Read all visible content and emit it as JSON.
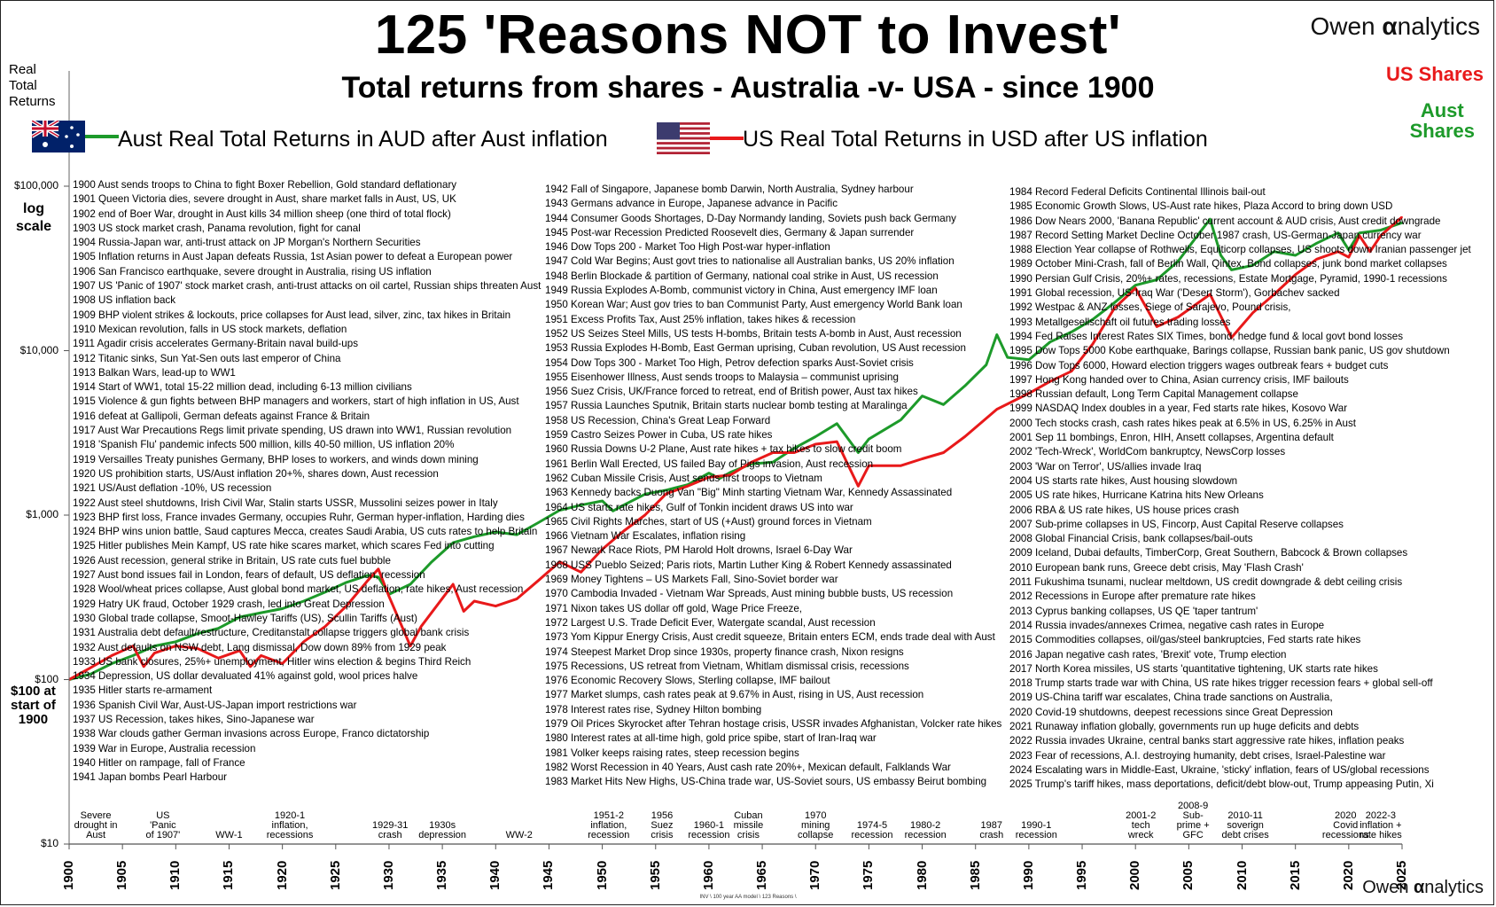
{
  "title": "125 'Reasons NOT to Invest'",
  "subtitle": "Total returns from shares - Australia -v- USA - since 1900",
  "brand": {
    "circle_letter": "O",
    "rest": "wen ",
    "alpha": "α",
    "tail": "nalytics"
  },
  "y_axis_title": "Real\nTotal\nReturns",
  "log_note": "log\nscale",
  "start_note": "$100 at\nstart of\n1900",
  "legend": {
    "au_label": "Aust Real Total Returns in AUD after Aust inflation",
    "us_label": "US Real Total Returns in USD after US inflation"
  },
  "end_labels": {
    "us": "US Shares",
    "au": "Aust\nShares"
  },
  "colors": {
    "au": "#1d9a2a",
    "us": "#e8191a",
    "flag_blue": "#012169",
    "flag_red": "#b22234"
  },
  "footnote": "INV \\ 100 year AA model \\ 123 Reasons \\",
  "chart_data": {
    "type": "line",
    "title": "125 'Reasons NOT to Invest'",
    "subtitle": "Total returns from shares - Australia -v- USA - since 1900",
    "ylabel": "Real Total Returns",
    "y_scale": "log",
    "ylim": [
      10,
      100000
    ],
    "xlim": [
      1900,
      2025
    ],
    "y_ticks": [
      "$10",
      "$100",
      "$1,000",
      "$10,000",
      "$100,000"
    ],
    "y_tick_values": [
      10,
      100,
      1000,
      10000,
      100000
    ],
    "x_ticks": [
      1900,
      1905,
      1910,
      1915,
      1920,
      1925,
      1930,
      1935,
      1940,
      1945,
      1950,
      1955,
      1960,
      1965,
      1970,
      1975,
      1980,
      1985,
      1990,
      1995,
      2000,
      2005,
      2010,
      2015,
      2020,
      2025
    ],
    "series": [
      {
        "name": "Aust Real Total Returns in AUD after Aust inflation",
        "color": "#1d9a2a",
        "x": [
          1900,
          1902,
          1904,
          1906,
          1908,
          1910,
          1912,
          1914,
          1916,
          1918,
          1920,
          1922,
          1924,
          1926,
          1928,
          1929,
          1930,
          1932,
          1934,
          1936,
          1938,
          1940,
          1942,
          1944,
          1946,
          1948,
          1950,
          1951,
          1952,
          1954,
          1956,
          1958,
          1960,
          1961,
          1962,
          1964,
          1966,
          1968,
          1970,
          1972,
          1974,
          1975,
          1978,
          1980,
          1982,
          1984,
          1986,
          1987,
          1988,
          1990,
          1992,
          1994,
          1996,
          1998,
          2000,
          2002,
          2004,
          2006,
          2007,
          2008,
          2009,
          2011,
          2013,
          2015,
          2017,
          2019,
          2020,
          2021,
          2023,
          2025
        ],
        "y": [
          100,
          108,
          125,
          140,
          160,
          170,
          190,
          205,
          240,
          255,
          270,
          300,
          340,
          390,
          430,
          420,
          330,
          380,
          520,
          680,
          740,
          790,
          760,
          900,
          1070,
          1150,
          1220,
          1060,
          1150,
          1340,
          1420,
          1530,
          1800,
          1670,
          1820,
          2050,
          2100,
          2550,
          3000,
          3600,
          2400,
          2900,
          3800,
          5300,
          4700,
          6100,
          8200,
          12500,
          9100,
          8800,
          11300,
          13000,
          15500,
          19500,
          25000,
          27000,
          35000,
          52000,
          63000,
          38000,
          31000,
          33000,
          40000,
          38000,
          45000,
          52000,
          41000,
          52000,
          54000,
          60000
        ]
      },
      {
        "name": "US Real Total Returns in USD after US inflation",
        "color": "#e8191a",
        "x": [
          1900,
          1902,
          1904,
          1906,
          1907,
          1908,
          1910,
          1912,
          1914,
          1916,
          1917,
          1918,
          1920,
          1922,
          1924,
          1926,
          1928,
          1929,
          1930,
          1932,
          1933,
          1936,
          1937,
          1938,
          1940,
          1942,
          1944,
          1946,
          1948,
          1950,
          1952,
          1954,
          1956,
          1958,
          1960,
          1962,
          1964,
          1966,
          1968,
          1970,
          1972,
          1974,
          1975,
          1978,
          1980,
          1982,
          1984,
          1987,
          1990,
          1992,
          1994,
          1996,
          1998,
          2000,
          2002,
          2004,
          2007,
          2009,
          2011,
          2013,
          2015,
          2017,
          2019,
          2020,
          2021,
          2022,
          2023,
          2025
        ],
        "y": [
          100,
          118,
          140,
          160,
          120,
          145,
          160,
          155,
          135,
          150,
          120,
          140,
          125,
          170,
          210,
          280,
          400,
          470,
          320,
          160,
          210,
          380,
          260,
          300,
          280,
          310,
          400,
          520,
          450,
          620,
          800,
          1000,
          1350,
          1500,
          1700,
          1750,
          2100,
          2400,
          2400,
          2700,
          2800,
          1500,
          2000,
          2000,
          2200,
          2400,
          3000,
          4400,
          5500,
          6500,
          7500,
          11000,
          18000,
          24000,
          14000,
          16000,
          22000,
          12000,
          17000,
          22000,
          29000,
          36000,
          40000,
          37000,
          50000,
          40000,
          50000,
          65000
        ]
      }
    ]
  },
  "events_col1": [
    "1900 Aust sends troops to China to fight Boxer Rebellion, Gold standard deflationary",
    "1901 Queen Victoria dies, severe drought in Aust, share market falls in Aust, US, UK",
    "1902 end of Boer War, drought in Aust kills 34 million sheep (one third of total flock)",
    "1903 US stock market crash, Panama revolution, fight for canal",
    "1904 Russia-Japan war, anti-trust attack on JP Morgan's Northern Securities",
    "1905 Inflation returns in Aust Japan defeats Russia, 1st Asian power to defeat a European power",
    "1906 San Francisco earthquake, severe drought in Australia, rising US inflation",
    "1907 US 'Panic of 1907' stock market crash, anti-trust attacks on oil cartel, Russian ships threaten Aust",
    "1908 US inflation back",
    "1909 BHP violent strikes & lockouts, price collapses for Aust lead, silver, zinc, tax hikes in Britain",
    "1910 Mexican revolution, falls in US stock markets, deflation",
    "1911 Agadir crisis accelerates Germany-Britain naval build-ups",
    "1912 Titanic sinks, Sun Yat-Sen outs last emperor of China",
    "1913 Balkan Wars, lead-up to WW1",
    "1914 Start of WW1, total 15-22 million dead, including 6-13 million civilians",
    "1915 Violence & gun fights between BHP managers and workers, start of high inflation in US, Aust",
    "1916 defeat at Gallipoli, German defeats against France & Britain",
    "1917 Aust War Precautions Regs limit private spending, US drawn into WW1, Russian revolution",
    "1918 'Spanish Flu' pandemic infects 500 million, kills 40-50 million, US inflation 20%",
    "1919 Versailles Treaty punishes Germany, BHP loses to workers, and winds down mining",
    "1920 US prohibition starts, US/Aust inflation 20+%, shares down, Aust recession",
    "1921 US/Aust deflation -10%, US recession",
    "1922 Aust steel shutdowns, Irish Civil War, Stalin starts USSR, Mussolini seizes power in Italy",
    "1923 BHP first loss, France invades Germany, occupies Ruhr, German hyper-inflation, Harding dies",
    "1924 BHP wins union battle, Saud captures Mecca, creates Saudi Arabia, US cuts rates to help Britain",
    "1925 Hitler publishes Mein Kampf, US rate hike scares market, which scares Fed into cutting",
    "1926 Aust recession, general strike in Britain, US rate cuts fuel bubble",
    "1927 Aust bond issues fail in London, fears of default, US deflation, recession",
    "1928 Wool/wheat prices collapse, Aust global bond market, US deflation, rate hikes, Aust recession",
    "1929 Hatry UK fraud, October 1929 crash, led into Great Depression",
    "1930 Global trade collapse, Smoot-Hawley Tariffs (US), Scullin Tariffs (Aust)",
    "1931 Australia debt default/restructure, Creditanstalt collapse triggers global bank crisis",
    "1932 Aust defaults on NSW debt, Lang dismissal, Dow down 89% from 1929 peak",
    "1933 US bank closures, 25%+ unemployment, Hitler wins election & begins Third Reich",
    "1934 Depression, US dollar devaluated 41% against gold, wool prices halve",
    "1935 Hitler starts re-armament",
    "1936 Spanish Civil War, Aust-US-Japan import restrictions war",
    "1937 US Recession, takes hikes, Sino-Japanese war",
    "1938 War clouds gather German invasions across Europe, Franco dictatorship",
    "1939 War in Europe, Australia recession",
    "1940 Hitler on rampage, fall of France",
    "1941 Japan bombs Pearl Harbour"
  ],
  "events_col2": [
    "1942 Fall of Singapore, Japanese bomb Darwin, North Australia, Sydney harbour",
    "1943 Germans advance in Europe, Japanese advance in Pacific",
    "1944 Consumer Goods Shortages, D-Day Normandy landing, Soviets push back Germany",
    "1945 Post-war Recession Predicted Roosevelt dies, Germany & Japan surrender",
    "1946 Dow Tops 200 - Market Too High Post-war hyper-inflation",
    "1947 Cold War Begins; Aust govt tries to nationalise all Australian banks, US 20% inflation",
    "1948 Berlin Blockade & partition of Germany, national coal strike in Aust, US recession",
    "1949 Russia Explodes A-Bomb, communist victory in China, Aust emergency IMF loan",
    "1950 Korean War; Aust gov tries to ban Communist Party, Aust emergency World Bank loan",
    "1951 Excess Profits Tax, Aust 25% inflation, takes hikes & recession",
    "1952 US Seizes Steel Mills, US tests H-bombs, Britain tests A-bomb in Aust, Aust recession",
    "1953 Russia Explodes H-Bomb, East German uprising, Cuban revolution, US Aust recession",
    "1954 Dow Tops 300 - Market Too High, Petrov defection sparks Aust-Soviet crisis",
    "1955 Eisenhower Illness, Aust sends troops to Malaysia – communist uprising",
    "1956 Suez Crisis, UK/France forced to retreat, end of British power, Aust tax hikes",
    "1957 Russia Launches Sputnik, Britain starts nuclear bomb testing at Maralinga",
    "1958 US Recession, China's Great Leap Forward",
    "1959 Castro Seizes Power in Cuba, US rate hikes",
    "1960 Russia Downs U-2 Plane, Aust rate hikes + tax hikes to slow credit boom",
    "1961 Berlin Wall Erected, US failed Bay of Pigs invasion, Aust recession",
    "1962 Cuban Missile Crisis, Aust sends first troops to Vietnam",
    "1963 Kennedy backs Duong Van \"Big\" Minh starting Vietnam War, Kennedy Assassinated",
    "1964 US starts rate hikes, Gulf of Tonkin incident draws US into war",
    "1965 Civil Rights Marches, start of US (+Aust) ground forces in Vietnam",
    "1966 Vietnam War Escalates, inflation rising",
    "1967 Newark Race Riots, PM Harold Holt drowns, Israel 6-Day War",
    "1968 USS Pueblo Seized; Paris riots, Martin Luther King & Robert Kennedy assassinated",
    "1969 Money Tightens – US Markets Fall, Sino-Soviet border war",
    "1970 Cambodia Invaded - Vietnam War Spreads, Aust mining bubble busts, US recession",
    "1971 Nixon takes US dollar off gold, Wage Price Freeze,",
    "1972 Largest U.S. Trade Deficit Ever, Watergate scandal, Aust recession",
    "1973 Yom Kippur Energy Crisis, Aust credit squeeze, Britain enters ECM, ends trade deal with Aust",
    "1974 Steepest Market Drop since 1930s, property finance crash, Nixon resigns",
    "1975 Recessions,  US retreat from Vietnam, Whitlam dismissal crisis, recessions",
    "1976 Economic Recovery Slows, Sterling collapse, IMF bailout",
    "1977 Market slumps, cash rates peak at 9.67% in Aust, rising in US, Aust recession",
    "1978 Interest rates rise, Sydney Hilton bombing",
    "1979 Oil Prices Skyrocket after Tehran hostage crisis, USSR invades Afghanistan, Volcker rate hikes",
    "1980 Interest rates at all-time high, gold price spibe, start of Iran-Iraq war",
    "1981 Volker keeps raising rates, steep recession begins",
    "1982 Worst Recession in 40 Years, Aust cash rate 20%+, Mexican default, Falklands War",
    "1983 Market Hits New Highs, US-China trade war, US-Soviet sours, US embassy Beirut bombing"
  ],
  "events_col3": [
    "1984 Record Federal Deficits Continental Illinois bail-out",
    "1985 Economic Growth Slows, US-Aust rate hikes, Plaza Accord to bring down USD",
    "1986 Dow Nears 2000, 'Banana Republic' current account & AUD crisis, Aust credit downgrade",
    "1987 Record Setting Market Decline October 1987 crash, US-German-Japan currency war",
    "1988 Election Year collapse of Rothwells, Equiticorp collapses, US shoots down Iranian passenger jet",
    "1989 October Mini-Crash, fall of Berlin Wall, Qintex, Bond collapses, junk bond market collapses",
    "1990 Persian Gulf Crisis, 20%+ rates, recessions, Estate Mortgage, Pyramid, 1990-1 recessions",
    "1991 Global recession, US-Iraq War ('Desert Storm'), Gorbachev sacked",
    "1992 Westpac & ANZ losses, Siege of Sarajevo, Pound crisis,",
    "1993 Metallgesellschaft oil futures trading losses",
    "1994 Fed Raises Interest Rates SIX Times, bond, hedge fund & local govt bond losses",
    "1995 Dow Tops 5000 Kobe earthquake, Barings collapse, Russian bank panic, US gov shutdown",
    "1996 Dow Tops 6000, Howard election triggers wages outbreak fears + budget cuts",
    "1997 Hong Kong handed over to China, Asian currency crisis, IMF bailouts",
    "1998 Russian default, Long Term Capital Management collapse",
    "1999 NASDAQ Index doubles in a year, Fed starts rate hikes, Kosovo War",
    "2000 Tech stocks crash, cash rates hikes peak at 6.5% in US, 6.25% in Aust",
    "2001 Sep 11 bombings, Enron, HIH, Ansett collapses, Argentina default",
    "2002 'Tech-Wreck', WorldCom bankruptcy, NewsCorp losses",
    "2003 'War on Terror', US/allies invade Iraq",
    "2004  US starts rate hikes, Aust housing slowdown",
    "2005  US rate hikes, Hurricane Katrina hits New Orleans",
    "2006 RBA & US rate hikes, US house prices crash",
    "2007 Sub-prime collapses in US, Fincorp, Aust Capital Reserve collapses",
    "2008 Global Financial Crisis, bank collapses/bail-outs",
    "2009 Iceland, Dubai defaults, TimberCorp, Great Southern, Babcock & Brown collapses",
    "2010 European bank runs, Greece debt crisis, May 'Flash Crash'",
    "2011 Fukushima tsunami, nuclear meltdown, US credit downgrade & debt ceiling crisis",
    "2012 Recessions in Europe after premature rate hikes",
    "2013 Cyprus banking collapses, US QE 'taper tantrum'",
    "2014 Russia invades/annexes Crimea, negative cash rates in Europe",
    "2015 Commodities collapses, oil/gas/steel bankruptcies, Fed starts rate hikes",
    "2016 Japan negative cash rates, 'Brexit' vote, Trump election",
    "2017 North Korea missiles, US starts 'quantitative tightening, UK starts rate hikes",
    "2018 Trump starts trade war with China, US rate hikes trigger recession fears + global sell-off",
    "2019 US-China tariff war escalates, China trade sanctions on Australia,",
    "2020 Covid-19 shutdowns, deepest recessions since Great Depression",
    "2021 Runaway inflation globally, governments run up huge deficits and debts",
    "2022 Russia invades Ukraine, central banks start aggressive rate hikes, inflation peaks",
    "2023 Fear of recessions, A.I. destroying humanity, debt crises, Israel-Palestine war",
    "2024 Escalating wars in Middle-East, Ukraine, 'sticky' inflation, fears of US/global recessions",
    "2025 Trump's tariff hikes, mass deportations, deficit/debt blow-out, Trump appeasing Putin, Xi"
  ],
  "bottom_labels": [
    {
      "year": 1902.5,
      "text": "Severe\ndrought in\nAust"
    },
    {
      "year": 1908.8,
      "text": "US\n'Panic\nof 1907'"
    },
    {
      "year": 1915.0,
      "text": "WW-1"
    },
    {
      "year": 1920.7,
      "text": "1920-1\ninflation,\nrecessions"
    },
    {
      "year": 1930.1,
      "text": "1929-31\ncrash"
    },
    {
      "year": 1935.0,
      "text": "1930s\ndepression"
    },
    {
      "year": 1942.2,
      "text": "WW-2"
    },
    {
      "year": 1950.6,
      "text": "1951-2\ninflation,\nrecession"
    },
    {
      "year": 1955.6,
      "text": "1956\nSuez\ncrisis"
    },
    {
      "year": 1960.0,
      "text": "1960-1\nrecession"
    },
    {
      "year": 1963.7,
      "text": "Cuban\nmissile\ncrisis"
    },
    {
      "year": 1970.0,
      "text": "1970\nmining\ncollapse"
    },
    {
      "year": 1975.3,
      "text": "1974-5\nrecession"
    },
    {
      "year": 1980.3,
      "text": "1980-2\nrecession"
    },
    {
      "year": 1986.5,
      "text": "1987\ncrash"
    },
    {
      "year": 1990.7,
      "text": "1990-1\nrecession"
    },
    {
      "year": 2000.5,
      "text": "2001-2\ntech\nwreck"
    },
    {
      "year": 2005.4,
      "text": "2008-9\nSub-\nprime +\nGFC"
    },
    {
      "year": 2010.3,
      "text": "2010-11\nsoverign\ndebt crises"
    },
    {
      "year": 2019.7,
      "text": "2020\nCovid\nrecessions"
    },
    {
      "year": 2023.0,
      "text": "2022-3\ninflation +\nrate hikes"
    }
  ]
}
